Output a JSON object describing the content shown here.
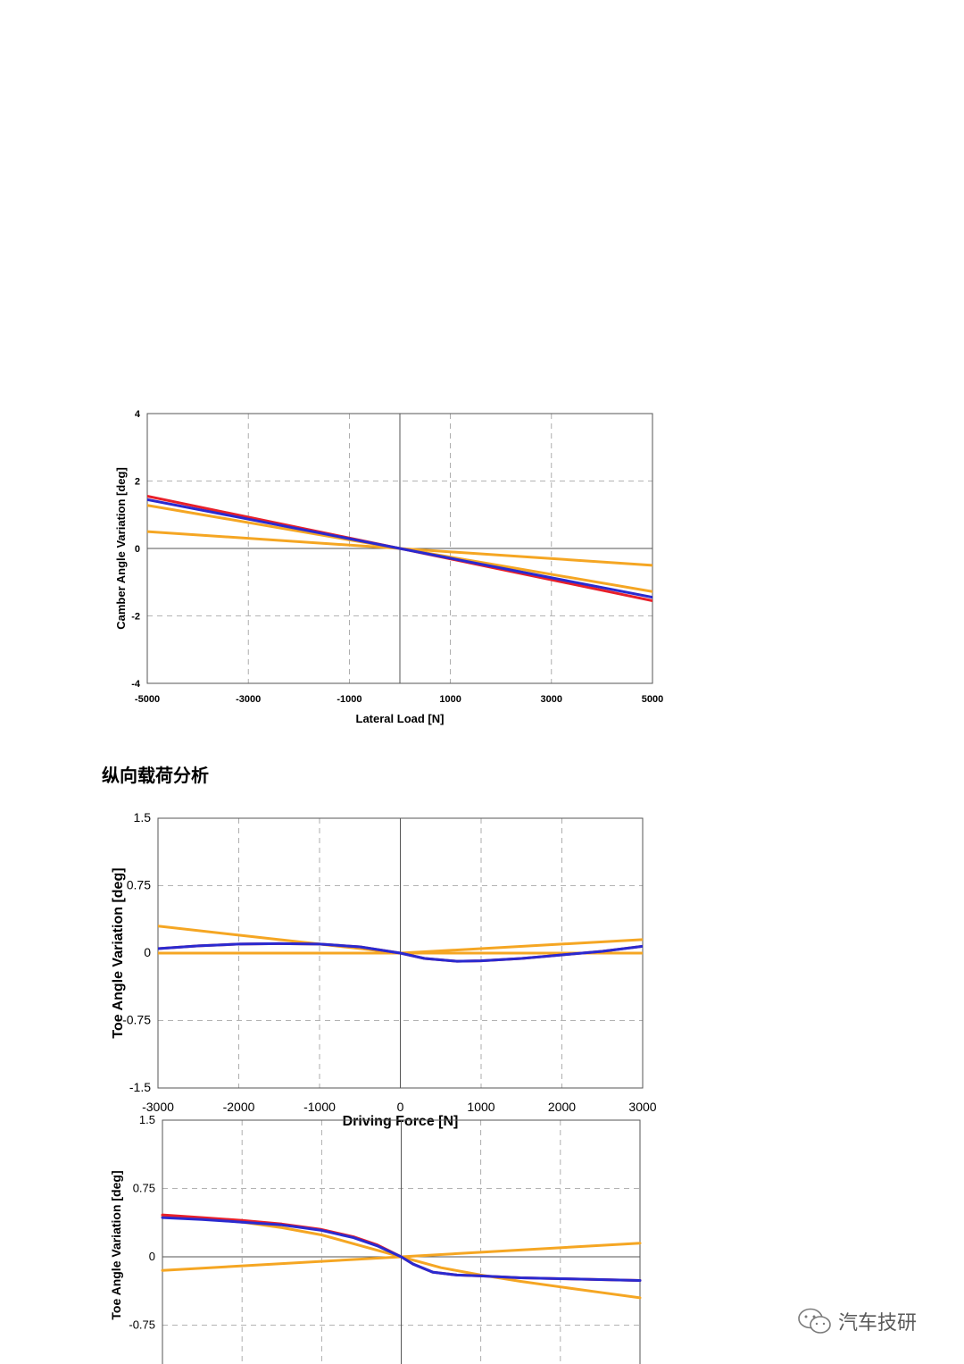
{
  "section_heading": "纵向载荷分析",
  "watermark": {
    "text": "汽车技研",
    "icon": "wechat-icon"
  },
  "colors": {
    "red": "#e8202a",
    "blue": "#2a2ad0",
    "orange": "#f5a623",
    "grid": "#9a9a9a",
    "axis": "#555555"
  },
  "chart_data": [
    {
      "type": "line",
      "xlabel": "Lateral Load [N]",
      "ylabel": "Camber Angle Variation [deg]",
      "xlim": [
        -5000,
        5000
      ],
      "ylim": [
        -4,
        4
      ],
      "x_ticks": [
        -5000,
        -3000,
        -1000,
        1000,
        3000,
        5000
      ],
      "x_tick_labels": [
        "-5000",
        "-3000",
        "-1000",
        "1000",
        "3000",
        "5000"
      ],
      "y_ticks": [
        -4,
        -2,
        0,
        2,
        4
      ],
      "y_tick_labels": [
        "-4",
        "-2",
        "0",
        "2",
        "4"
      ],
      "grid": true,
      "series": [
        {
          "color": "#e8202a",
          "x": [
            -5000,
            5000
          ],
          "y": [
            1.55,
            -1.55
          ]
        },
        {
          "color": "#2a2ad0",
          "x": [
            -5000,
            5000
          ],
          "y": [
            1.45,
            -1.45
          ]
        },
        {
          "color": "#f5a623",
          "x": [
            -5000,
            5000
          ],
          "y": [
            1.28,
            -1.28
          ]
        },
        {
          "color": "#f5a623",
          "x": [
            -5000,
            5000
          ],
          "y": [
            0.5,
            -0.5
          ]
        }
      ]
    },
    {
      "type": "line",
      "xlabel": "Driving Force [N]",
      "ylabel": "Toe Angle Variation [deg]",
      "xlim": [
        -3000,
        3000
      ],
      "ylim": [
        -1.5,
        1.5
      ],
      "x_ticks": [
        -3000,
        -2000,
        -1000,
        0,
        1000,
        2000,
        3000
      ],
      "x_tick_labels": [
        "-3000",
        "-2000",
        "-1000",
        "0",
        "1000",
        "2000",
        "3000"
      ],
      "y_ticks": [
        -1.5,
        -0.75,
        0,
        0.75,
        1.5
      ],
      "y_tick_labels": [
        "-1.5",
        "-0.75",
        "0",
        "0.75",
        "1.5"
      ],
      "grid": true,
      "series": [
        {
          "color": "#e8202a",
          "x": [
            -3000,
            -2500,
            -2000,
            -1500,
            -1000,
            -500,
            0,
            300,
            700,
            1000,
            1500,
            2000,
            2500,
            3000
          ],
          "y": [
            0.05,
            0.08,
            0.1,
            0.105,
            0.1,
            0.07,
            0.0,
            -0.06,
            -0.09,
            -0.085,
            -0.06,
            -0.02,
            0.02,
            0.075
          ]
        },
        {
          "color": "#2a2ad0",
          "x": [
            -3000,
            -2500,
            -2000,
            -1500,
            -1000,
            -500,
            0,
            300,
            700,
            1000,
            1500,
            2000,
            2500,
            3000
          ],
          "y": [
            0.05,
            0.08,
            0.1,
            0.105,
            0.1,
            0.07,
            0.0,
            -0.06,
            -0.09,
            -0.085,
            -0.06,
            -0.02,
            0.02,
            0.075
          ]
        },
        {
          "color": "#f5a623",
          "x": [
            -3000,
            -2000,
            -1000,
            0,
            1000,
            2000,
            3000
          ],
          "y": [
            0.3,
            0.2,
            0.1,
            0.0,
            0.05,
            0.1,
            0.15
          ]
        },
        {
          "color": "#f5a623",
          "x": [
            -3000,
            0,
            3000
          ],
          "y": [
            0.0,
            0.0,
            0.0
          ]
        }
      ]
    },
    {
      "type": "line",
      "xlabel": "",
      "ylabel": "Toe Angle Variation [deg]",
      "xlim": [
        -3000,
        3000
      ],
      "ylim": [
        -1.5,
        1.5
      ],
      "y_ticks": [
        -0.75,
        0,
        0.75,
        1.5
      ],
      "y_tick_labels": [
        "-0.75",
        "0",
        "0.75",
        "1.5"
      ],
      "grid": true,
      "series": [
        {
          "color": "#e8202a",
          "x": [
            -3000,
            -2500,
            -2000,
            -1500,
            -1000,
            -600,
            -300,
            0,
            150,
            400,
            700,
            1000,
            1500,
            2000,
            2500,
            3000
          ],
          "y": [
            0.46,
            0.43,
            0.4,
            0.36,
            0.3,
            0.22,
            0.13,
            0.0,
            -0.08,
            -0.17,
            -0.2,
            -0.21,
            -0.23,
            -0.24,
            -0.25,
            -0.26
          ]
        },
        {
          "color": "#2a2ad0",
          "x": [
            -3000,
            -2500,
            -2000,
            -1500,
            -1000,
            -600,
            -300,
            0,
            150,
            400,
            700,
            1000,
            1500,
            2000,
            2500,
            3000
          ],
          "y": [
            0.43,
            0.41,
            0.38,
            0.35,
            0.29,
            0.21,
            0.12,
            0.0,
            -0.08,
            -0.17,
            -0.2,
            -0.21,
            -0.23,
            -0.24,
            -0.25,
            -0.26
          ]
        },
        {
          "color": "#f5a623",
          "x": [
            -3000,
            -2500,
            -2000,
            -1500,
            -1000,
            -500,
            0,
            500,
            1000,
            1500,
            2000,
            2500,
            3000
          ],
          "y": [
            0.45,
            0.42,
            0.38,
            0.32,
            0.24,
            0.12,
            0.0,
            -0.12,
            -0.2,
            -0.27,
            -0.33,
            -0.39,
            -0.45
          ]
        },
        {
          "color": "#f5a623",
          "x": [
            -3000,
            3000
          ],
          "y": [
            -0.15,
            0.15
          ]
        }
      ]
    }
  ]
}
